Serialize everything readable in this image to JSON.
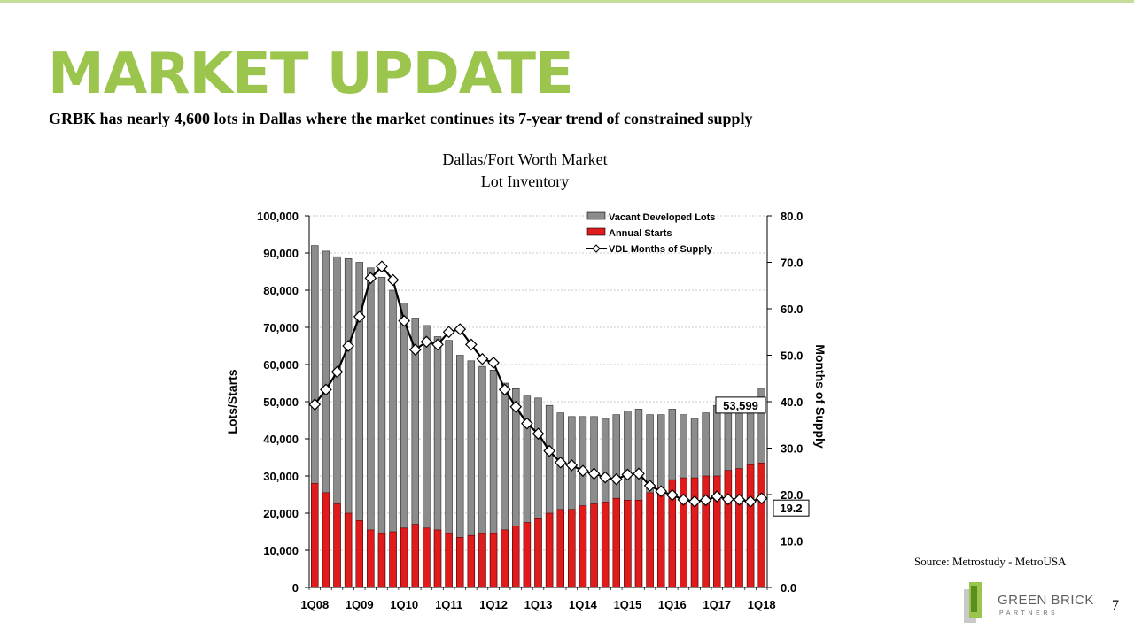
{
  "slide": {
    "title": "MARKET UPDATE",
    "subtitle": "GRBK has nearly 4,600 lots in Dallas where the market continues its 7-year trend of constrained supply",
    "source": "Source: Metrostudy - MetroUSA",
    "page_number": "7",
    "logo": {
      "name": "GREEN BRICK",
      "sub": "PARTNERS"
    }
  },
  "chart_data": {
    "type": "bar",
    "title_lines": [
      "Dallas/Fort Worth Market",
      "Lot Inventory"
    ],
    "ylabel": "Lots/Starts",
    "y2label": "Months of Supply",
    "ylim": [
      0,
      100000
    ],
    "y2lim": [
      0,
      80
    ],
    "y_ticks": [
      "0",
      "10,000",
      "20,000",
      "30,000",
      "40,000",
      "50,000",
      "60,000",
      "70,000",
      "80,000",
      "90,000",
      "100,000"
    ],
    "y2_ticks": [
      "0.0",
      "10.0",
      "20.0",
      "30.0",
      "40.0",
      "50.0",
      "60.0",
      "70.0",
      "80.0"
    ],
    "x_tick_labels": [
      "1Q08",
      "1Q09",
      "1Q10",
      "1Q11",
      "1Q12",
      "1Q13",
      "1Q14",
      "1Q15",
      "1Q16",
      "1Q17",
      "1Q18"
    ],
    "x_label_every": 4,
    "grid": true,
    "legend_position": "top-right",
    "colors": {
      "vacant": "#8c8c8c",
      "starts": "#e01b1b",
      "line": "#000000",
      "grid": "#c8c8c8"
    },
    "series": [
      {
        "name": "Vacant Developed Lots",
        "axis": "left",
        "type": "bar",
        "values": [
          92000,
          90500,
          89000,
          88500,
          87500,
          86000,
          83500,
          80000,
          76500,
          72500,
          70500,
          67500,
          66500,
          62500,
          61000,
          59500,
          58500,
          55000,
          53500,
          51500,
          51000,
          49000,
          47000,
          46000,
          46000,
          46000,
          45500,
          46500,
          47500,
          48000,
          46500,
          46500,
          48000,
          46500,
          45500,
          47000,
          49000,
          50000,
          50500,
          51000,
          53599
        ]
      },
      {
        "name": "Annual Starts",
        "axis": "left",
        "type": "bar",
        "values": [
          28000,
          25500,
          22500,
          20000,
          18000,
          15500,
          14500,
          15000,
          16000,
          17000,
          16000,
          15500,
          14500,
          13500,
          14000,
          14500,
          14500,
          15500,
          16500,
          17500,
          18500,
          20000,
          21000,
          21000,
          22000,
          22500,
          23000,
          24000,
          23500,
          23500,
          25500,
          27000,
          29000,
          29500,
          29500,
          30000,
          30000,
          31500,
          32000,
          33000,
          33500
        ]
      },
      {
        "name": "VDL Months of Supply",
        "axis": "right",
        "type": "line",
        "values": [
          39.4,
          42.6,
          46.4,
          52.0,
          58.3,
          66.6,
          69.1,
          66.2,
          57.4,
          51.2,
          52.9,
          52.3,
          55.0,
          55.6,
          52.3,
          49.2,
          48.4,
          42.6,
          38.9,
          35.3,
          33.1,
          29.4,
          26.9,
          26.3,
          25.1,
          24.5,
          23.7,
          23.3,
          24.3,
          24.5,
          21.9,
          20.7,
          19.9,
          18.9,
          18.5,
          18.8,
          19.6,
          19.0,
          18.9,
          18.5,
          19.2
        ]
      }
    ],
    "annotations": [
      {
        "text": "53,599",
        "series": "Vacant Developed Lots",
        "index": 40
      },
      {
        "text": "19.2",
        "series": "VDL Months of Supply",
        "index": 40
      }
    ]
  }
}
